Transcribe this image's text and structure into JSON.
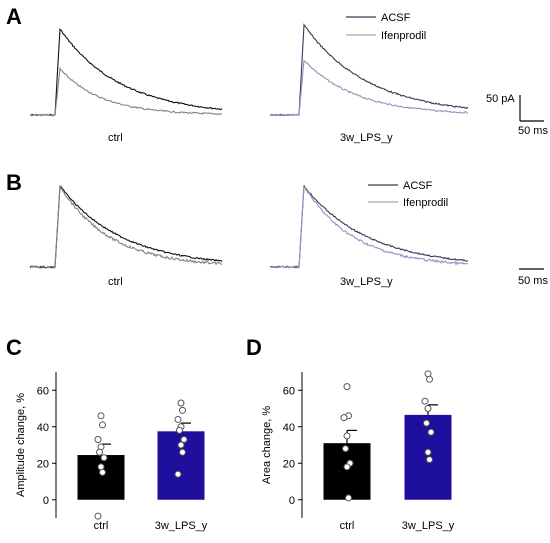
{
  "panels": {
    "A": "A",
    "B": "B",
    "C": "C",
    "D": "D"
  },
  "traces": {
    "legend": [
      "ACSF",
      "Ifenprodil"
    ],
    "group_labels": [
      "ctrl",
      "3w_LPS_y"
    ],
    "scalebar_amplitude": "50 pA",
    "scalebar_time": "50 ms",
    "colors": {
      "ctrl_acsf": "#111111",
      "ctrl_ifen": "#858585",
      "lps_acsf": "#3d3656",
      "lps_ifen": "#9a90bf",
      "legend_acsf": "#3d3656",
      "legend_ifen": "#a9a9a9"
    }
  },
  "chart_data": [
    {
      "panel": "C",
      "type": "bar",
      "categories": [
        "ctrl",
        "3w_LPS_y"
      ],
      "values": [
        24.5,
        37.5
      ],
      "sem": [
        6,
        4.5
      ],
      "colors": [
        "#000000",
        "#1e0f9c"
      ],
      "ylabel": "Amplitude change, %",
      "ylim": [
        -10,
        70
      ],
      "yticks": [
        0,
        20,
        40,
        60
      ],
      "points": [
        [
          46,
          41,
          33,
          29,
          26,
          23,
          18,
          15,
          -9
        ],
        [
          53,
          49,
          44,
          40,
          38,
          33,
          30,
          26,
          14
        ]
      ]
    },
    {
      "panel": "D",
      "type": "bar",
      "categories": [
        "ctrl",
        "3w_LPS_y"
      ],
      "values": [
        31,
        46.5
      ],
      "sem": [
        7,
        5.5
      ],
      "colors": [
        "#000000",
        "#1e0f9c"
      ],
      "ylabel": "Area change, %",
      "ylim": [
        -10,
        70
      ],
      "yticks": [
        0,
        20,
        40,
        60
      ],
      "points": [
        [
          62,
          46,
          45,
          35,
          28,
          20,
          18,
          1
        ],
        [
          69,
          66,
          54,
          50,
          42,
          37,
          26,
          22
        ]
      ]
    }
  ]
}
